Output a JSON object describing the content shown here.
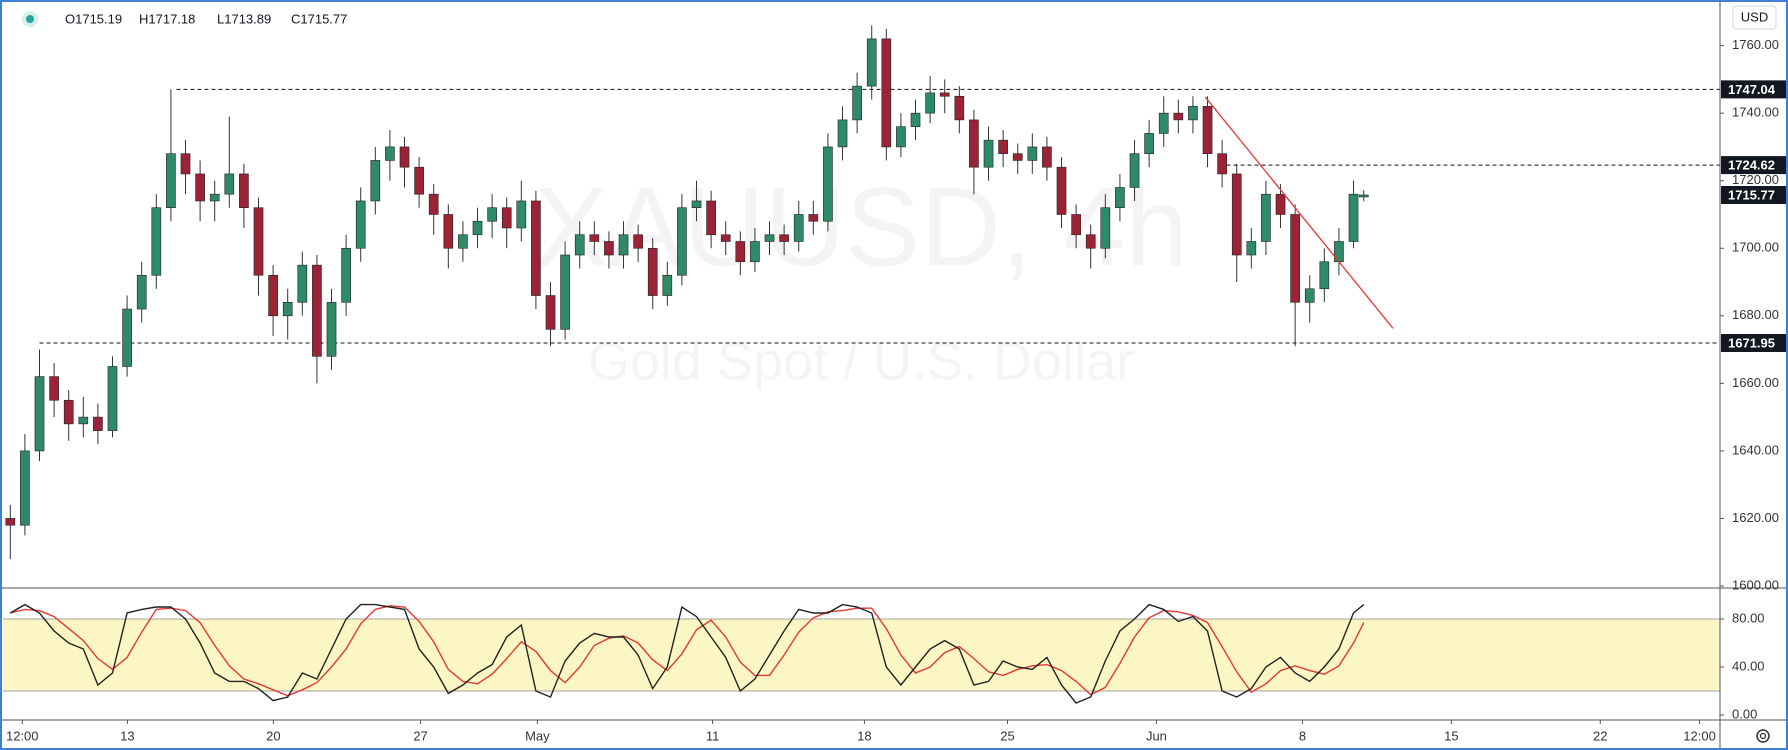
{
  "chart_data": {
    "type": "candlestick",
    "watermark": "XAUUSD, 4h",
    "watermark_subtitle": "Gold Spot / U.S. Dollar",
    "currency": "USD",
    "ohlc": [
      "O1715.19",
      "H1717.18",
      "L1713.89",
      "C1715.77"
    ],
    "colors": {
      "up": "#2f8a68",
      "down": "#9b2335",
      "wick": "#333333"
    },
    "xlim": [
      0,
      58.8
    ],
    "ylim": [
      1600,
      1773.5
    ],
    "xticks": [
      {
        "value": 0.66,
        "label": "12:00"
      },
      {
        "value": 4.26,
        "label": "13"
      },
      {
        "value": 9.26,
        "label": "20"
      },
      {
        "value": 14.3,
        "label": "27"
      },
      {
        "value": 18.3,
        "label": "May"
      },
      {
        "value": 24.3,
        "label": "11"
      },
      {
        "value": 29.5,
        "label": "18"
      },
      {
        "value": 34.4,
        "label": "25"
      },
      {
        "value": 39.5,
        "label": "Jun"
      },
      {
        "value": 44.5,
        "label": "8"
      },
      {
        "value": 49.6,
        "label": "15"
      },
      {
        "value": 54.7,
        "label": "22"
      },
      {
        "value": 58.1,
        "label": "12:00"
      }
    ],
    "yticks": [
      {
        "value": 1600,
        "label": "1600.00"
      },
      {
        "value": 1620,
        "label": "1620.00"
      },
      {
        "value": 1640,
        "label": "1640.00"
      },
      {
        "value": 1660,
        "label": "1660.00"
      },
      {
        "value": 1680,
        "label": "1680.00"
      },
      {
        "value": 1700,
        "label": "1700.00"
      },
      {
        "value": 1720,
        "label": "1720.00"
      },
      {
        "value": 1740,
        "label": "1740.00"
      },
      {
        "value": 1760,
        "label": "1760.00"
      }
    ],
    "x": [
      0.25,
      0.75,
      1.25,
      1.75,
      2.25,
      2.75,
      3.25,
      3.75,
      4.25,
      4.75,
      5.25,
      5.75,
      6.25,
      6.75,
      7.25,
      7.75,
      8.25,
      8.75,
      9.25,
      9.75,
      10.25,
      10.75,
      11.25,
      11.75,
      12.25,
      12.75,
      13.25,
      13.75,
      14.25,
      14.75,
      15.25,
      15.75,
      16.25,
      16.75,
      17.25,
      17.75,
      18.25,
      18.75,
      19.25,
      19.75,
      20.25,
      20.75,
      21.25,
      21.75,
      22.25,
      22.75,
      23.25,
      23.75,
      24.25,
      24.75,
      25.25,
      25.75,
      26.25,
      26.75,
      27.25,
      27.75,
      28.25,
      28.75,
      29.25,
      29.75,
      30.25,
      30.75,
      31.25,
      31.75,
      32.25,
      32.75,
      33.25,
      33.75,
      34.25,
      34.75,
      35.25,
      35.75,
      36.25,
      36.75,
      37.25,
      37.75,
      38.25,
      38.75,
      39.25,
      39.75,
      40.25,
      40.75,
      41.25,
      41.75,
      42.25,
      42.75,
      43.25,
      43.75,
      44.25,
      44.75,
      45.25,
      45.75,
      46.25,
      46.6
    ],
    "candles": [
      [
        1620,
        1624,
        1608,
        1618
      ],
      [
        1618,
        1645,
        1615,
        1640
      ],
      [
        1640,
        1670,
        1637,
        1662
      ],
      [
        1662,
        1666,
        1650,
        1655
      ],
      [
        1655,
        1658,
        1643,
        1648
      ],
      [
        1648,
        1656,
        1644,
        1650
      ],
      [
        1650,
        1654,
        1642,
        1646
      ],
      [
        1646,
        1668,
        1644,
        1665
      ],
      [
        1665,
        1686,
        1662,
        1682
      ],
      [
        1682,
        1696,
        1678,
        1692
      ],
      [
        1692,
        1716,
        1688,
        1712
      ],
      [
        1712,
        1747,
        1708,
        1728
      ],
      [
        1728,
        1732,
        1716,
        1722
      ],
      [
        1722,
        1726,
        1708,
        1714
      ],
      [
        1714,
        1720,
        1708,
        1716
      ],
      [
        1716,
        1739,
        1712,
        1722
      ],
      [
        1722,
        1725,
        1706,
        1712
      ],
      [
        1712,
        1715,
        1686,
        1692
      ],
      [
        1692,
        1695,
        1674,
        1680
      ],
      [
        1680,
        1688,
        1673,
        1684
      ],
      [
        1684,
        1699,
        1680,
        1695
      ],
      [
        1695,
        1698,
        1660,
        1668
      ],
      [
        1668,
        1688,
        1664,
        1684
      ],
      [
        1684,
        1704,
        1680,
        1700
      ],
      [
        1700,
        1718,
        1696,
        1714
      ],
      [
        1714,
        1730,
        1710,
        1726
      ],
      [
        1726,
        1735,
        1720,
        1730
      ],
      [
        1730,
        1733,
        1718,
        1724
      ],
      [
        1724,
        1727,
        1712,
        1716
      ],
      [
        1716,
        1719,
        1704,
        1710
      ],
      [
        1710,
        1713,
        1694,
        1700
      ],
      [
        1700,
        1708,
        1696,
        1704
      ],
      [
        1704,
        1712,
        1700,
        1708
      ],
      [
        1708,
        1716,
        1703,
        1712
      ],
      [
        1712,
        1715,
        1700,
        1706
      ],
      [
        1706,
        1720,
        1702,
        1714
      ],
      [
        1714,
        1717,
        1682,
        1686
      ],
      [
        1686,
        1690,
        1671,
        1676
      ],
      [
        1676,
        1702,
        1673,
        1698
      ],
      [
        1698,
        1708,
        1694,
        1704
      ],
      [
        1704,
        1708,
        1698,
        1702
      ],
      [
        1702,
        1705,
        1694,
        1698
      ],
      [
        1698,
        1708,
        1694,
        1704
      ],
      [
        1704,
        1707,
        1696,
        1700
      ],
      [
        1700,
        1703,
        1682,
        1686
      ],
      [
        1686,
        1696,
        1683,
        1692
      ],
      [
        1692,
        1716,
        1689,
        1712
      ],
      [
        1712,
        1720,
        1708,
        1714
      ],
      [
        1714,
        1717,
        1700,
        1704
      ],
      [
        1704,
        1708,
        1698,
        1702
      ],
      [
        1702,
        1705,
        1692,
        1696
      ],
      [
        1696,
        1706,
        1693,
        1702
      ],
      [
        1702,
        1708,
        1698,
        1704
      ],
      [
        1704,
        1707,
        1698,
        1702
      ],
      [
        1702,
        1714,
        1699,
        1710
      ],
      [
        1710,
        1714,
        1704,
        1708
      ],
      [
        1708,
        1734,
        1705,
        1730
      ],
      [
        1730,
        1742,
        1726,
        1738
      ],
      [
        1738,
        1752,
        1734,
        1748
      ],
      [
        1748,
        1766,
        1744,
        1762
      ],
      [
        1762,
        1765,
        1726,
        1730
      ],
      [
        1730,
        1740,
        1727,
        1736
      ],
      [
        1736,
        1744,
        1732,
        1740
      ],
      [
        1740,
        1751,
        1737,
        1746
      ],
      [
        1746,
        1750,
        1740,
        1745
      ],
      [
        1745,
        1748,
        1734,
        1738
      ],
      [
        1738,
        1741,
        1716,
        1724
      ],
      [
        1724,
        1736,
        1720,
        1732
      ],
      [
        1732,
        1735,
        1724,
        1728
      ],
      [
        1728,
        1731,
        1722,
        1726
      ],
      [
        1726,
        1734,
        1722,
        1730
      ],
      [
        1730,
        1733,
        1720,
        1724
      ],
      [
        1724,
        1727,
        1706,
        1710
      ],
      [
        1710,
        1713,
        1700,
        1704
      ],
      [
        1704,
        1707,
        1694,
        1700
      ],
      [
        1700,
        1716,
        1697,
        1712
      ],
      [
        1712,
        1722,
        1708,
        1718
      ],
      [
        1718,
        1732,
        1714,
        1728
      ],
      [
        1728,
        1738,
        1724,
        1734
      ],
      [
        1734,
        1745,
        1730,
        1740
      ],
      [
        1740,
        1744,
        1734,
        1738
      ],
      [
        1738,
        1745,
        1734,
        1742
      ],
      [
        1742,
        1745,
        1724,
        1728
      ],
      [
        1728,
        1732,
        1718,
        1722
      ],
      [
        1722,
        1725,
        1690,
        1698
      ],
      [
        1698,
        1706,
        1694,
        1702
      ],
      [
        1702,
        1720,
        1698,
        1716
      ],
      [
        1716,
        1719,
        1706,
        1710
      ],
      [
        1710,
        1713,
        1671,
        1684
      ],
      [
        1684,
        1692,
        1678,
        1688
      ],
      [
        1688,
        1700,
        1684,
        1696
      ],
      [
        1696,
        1706,
        1692,
        1702
      ],
      [
        1702,
        1720,
        1700,
        1716
      ],
      [
        1715.19,
        1717.18,
        1713.89,
        1715.77
      ]
    ],
    "levels": [
      {
        "value": 1747.04,
        "label": "1747.04",
        "x": 5.94
      },
      {
        "value": 1724.62,
        "label": "1724.62",
        "x": 41.9
      },
      {
        "value": 1671.95,
        "label": "1671.95",
        "x": 1.25
      }
    ],
    "last_price": {
      "value": 1715.77,
      "label": "1715.77"
    },
    "trendline": {
      "x": [
        41.17,
        47.6
      ],
      "y": [
        1744.8,
        1676.3
      ],
      "color": "#e53935"
    },
    "indicator": {
      "type": "stochastic",
      "ylim": [
        0,
        105
      ],
      "yticks": [
        {
          "value": 0,
          "label": "0.00"
        },
        {
          "value": 40,
          "label": "40.00"
        },
        {
          "value": 80,
          "label": "80.00"
        }
      ],
      "band": [
        20,
        80
      ],
      "band_color": "#fbf6c4",
      "k": {
        "color": "#222222",
        "values": [
          85,
          92,
          85,
          70,
          60,
          55,
          25,
          35,
          85,
          88,
          90,
          90,
          80,
          60,
          35,
          28,
          28,
          22,
          12,
          15,
          35,
          30,
          55,
          80,
          92,
          92,
          90,
          88,
          55,
          40,
          18,
          25,
          35,
          42,
          65,
          75,
          20,
          15,
          45,
          60,
          68,
          65,
          65,
          50,
          22,
          40,
          90,
          82,
          65,
          48,
          20,
          30,
          50,
          70,
          88,
          85,
          85,
          92,
          90,
          85,
          40,
          25,
          40,
          55,
          62,
          55,
          25,
          28,
          45,
          40,
          38,
          48,
          25,
          10,
          15,
          45,
          70,
          80,
          92,
          88,
          78,
          82,
          70,
          20,
          15,
          22,
          40,
          48,
          35,
          28,
          40,
          55,
          85,
          92
        ]
      },
      "d": {
        "color": "#e53935",
        "values": [
          85,
          88,
          87,
          82,
          72,
          62,
          47,
          38,
          48,
          69,
          88,
          89,
          87,
          77,
          58,
          41,
          30,
          26,
          21,
          16,
          21,
          27,
          40,
          55,
          76,
          88,
          91,
          90,
          78,
          61,
          38,
          28,
          26,
          34,
          47,
          61,
          53,
          37,
          27,
          40,
          58,
          64,
          66,
          60,
          46,
          37,
          51,
          71,
          79,
          65,
          44,
          33,
          33,
          50,
          69,
          81,
          86,
          87,
          89,
          89,
          72,
          50,
          35,
          40,
          52,
          57,
          47,
          36,
          33,
          38,
          41,
          42,
          37,
          28,
          17,
          23,
          43,
          65,
          81,
          87,
          86,
          83,
          77,
          57,
          36,
          19,
          26,
          37,
          41,
          37,
          34,
          41,
          60,
          77
        ]
      }
    }
  }
}
